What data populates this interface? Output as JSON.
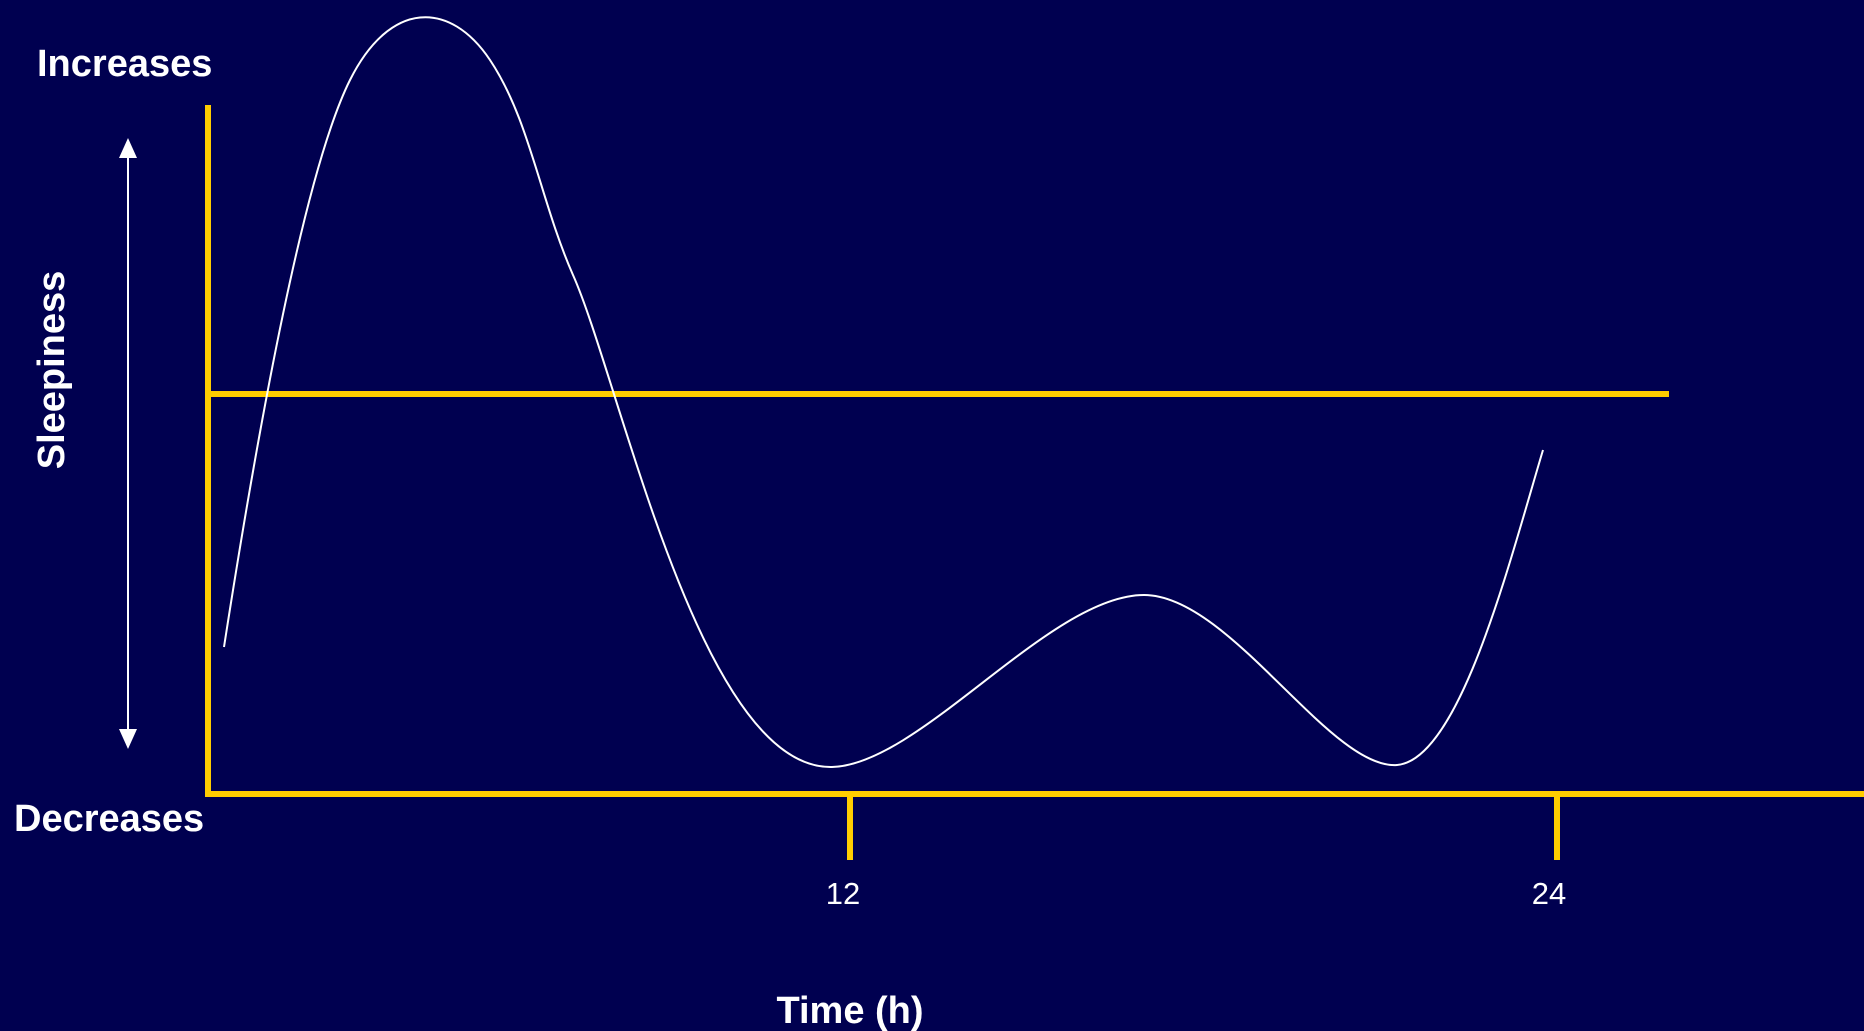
{
  "y_axis": {
    "label": "Sleepiness",
    "top_label": "Increases",
    "bottom_label": "Decreases"
  },
  "x_axis": {
    "label": "Time (h)",
    "ticks": [
      "12",
      "24"
    ]
  }
}
